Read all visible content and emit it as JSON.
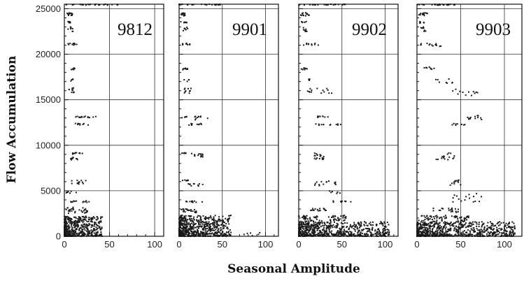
{
  "chart_data": {
    "type": "scatter",
    "title": "",
    "xlabel": "Seasonal Amplitude",
    "ylabel": "Flow Accumulation",
    "grid": true,
    "shared_y_ticks": [
      0,
      5000,
      10000,
      15000,
      20000,
      25000
    ],
    "panels": [
      {
        "label": "9812",
        "xlim": [
          0,
          110
        ],
        "ylim": [
          0,
          25500
        ],
        "x_ticks": [
          0,
          50,
          100
        ],
        "clusters": [
          {
            "x": [
              0,
              65
            ],
            "y": [
              25400,
              25500
            ],
            "n": 24
          },
          {
            "x": [
              3,
              9
            ],
            "y": [
              24200,
              24600
            ],
            "n": 14
          },
          {
            "x": [
              3,
              9
            ],
            "y": [
              23400,
              23600
            ],
            "n": 6
          },
          {
            "x": [
              4,
              10
            ],
            "y": [
              22500,
              23000
            ],
            "n": 8
          },
          {
            "x": [
              4,
              14
            ],
            "y": [
              21000,
              21200
            ],
            "n": 10
          },
          {
            "x": [
              6,
              12
            ],
            "y": [
              18300,
              18500
            ],
            "n": 8
          },
          {
            "x": [
              6,
              10
            ],
            "y": [
              17000,
              17300
            ],
            "n": 4
          },
          {
            "x": [
              5,
              11
            ],
            "y": [
              15700,
              16300
            ],
            "n": 10
          },
          {
            "x": [
              11,
              36
            ],
            "y": [
              13000,
              13200
            ],
            "n": 14
          },
          {
            "x": [
              11,
              28
            ],
            "y": [
              12200,
              12400
            ],
            "n": 10
          },
          {
            "x": [
              8,
              20
            ],
            "y": [
              9000,
              9200
            ],
            "n": 10
          },
          {
            "x": [
              6,
              15
            ],
            "y": [
              8400,
              8700
            ],
            "n": 10
          },
          {
            "x": [
              7,
              24
            ],
            "y": [
              5700,
              6200
            ],
            "n": 14
          },
          {
            "x": [
              2,
              14
            ],
            "y": [
              4700,
              5000
            ],
            "n": 8
          },
          {
            "x": [
              7,
              28
            ],
            "y": [
              3700,
              3900
            ],
            "n": 12
          },
          {
            "x": [
              2,
              26
            ],
            "y": [
              2500,
              3200
            ],
            "n": 30
          },
          {
            "x": [
              0,
              42
            ],
            "y": [
              0,
              2200
            ],
            "n": 520
          }
        ]
      },
      {
        "label": "9901",
        "xlim": [
          0,
          115
        ],
        "ylim": [
          0,
          25500
        ],
        "x_ticks": [
          0,
          50,
          100
        ],
        "clusters": [
          {
            "x": [
              0,
              48
            ],
            "y": [
              25400,
              25500
            ],
            "n": 26
          },
          {
            "x": [
              2,
              9
            ],
            "y": [
              24200,
              24600
            ],
            "n": 14
          },
          {
            "x": [
              2,
              9
            ],
            "y": [
              23400,
              23600
            ],
            "n": 6
          },
          {
            "x": [
              4,
              10
            ],
            "y": [
              22500,
              23000
            ],
            "n": 8
          },
          {
            "x": [
              3,
              14
            ],
            "y": [
              21000,
              21200
            ],
            "n": 10
          },
          {
            "x": [
              3,
              10
            ],
            "y": [
              18300,
              18500
            ],
            "n": 8
          },
          {
            "x": [
              5,
              12
            ],
            "y": [
              17000,
              17300
            ],
            "n": 4
          },
          {
            "x": [
              5,
              14
            ],
            "y": [
              15700,
              16300
            ],
            "n": 10
          },
          {
            "x": [
              2,
              10
            ],
            "y": [
              13000,
              13200
            ],
            "n": 5
          },
          {
            "x": [
              18,
              34
            ],
            "y": [
              12800,
              13200
            ],
            "n": 10
          },
          {
            "x": [
              10,
              26
            ],
            "y": [
              12200,
              12400
            ],
            "n": 10
          },
          {
            "x": [
              2,
              10
            ],
            "y": [
              9000,
              9200
            ],
            "n": 5
          },
          {
            "x": [
              12,
              28
            ],
            "y": [
              8600,
              9200
            ],
            "n": 14
          },
          {
            "x": [
              4,
              12
            ],
            "y": [
              6000,
              6200
            ],
            "n": 6
          },
          {
            "x": [
              9,
              28
            ],
            "y": [
              5500,
              5800
            ],
            "n": 10
          },
          {
            "x": [
              8,
              27
            ],
            "y": [
              3700,
              3900
            ],
            "n": 12
          },
          {
            "x": [
              2,
              22
            ],
            "y": [
              2600,
              3000
            ],
            "n": 22
          },
          {
            "x": [
              0,
              60
            ],
            "y": [
              0,
              2300
            ],
            "n": 620
          },
          {
            "x": [
              75,
              97
            ],
            "y": [
              0,
              600
            ],
            "n": 6
          }
        ]
      },
      {
        "label": "9902",
        "xlim": [
          0,
          115
        ],
        "ylim": [
          0,
          25500
        ],
        "x_ticks": [
          0,
          50,
          100
        ],
        "clusters": [
          {
            "x": [
              0,
              55
            ],
            "y": [
              25400,
              25500
            ],
            "n": 26
          },
          {
            "x": [
              2,
              12
            ],
            "y": [
              24200,
              24600
            ],
            "n": 14
          },
          {
            "x": [
              2,
              10
            ],
            "y": [
              23400,
              23600
            ],
            "n": 6
          },
          {
            "x": [
              4,
              10
            ],
            "y": [
              22500,
              23000
            ],
            "n": 8
          },
          {
            "x": [
              3,
              30
            ],
            "y": [
              21000,
              21200
            ],
            "n": 10
          },
          {
            "x": [
              3,
              10
            ],
            "y": [
              18300,
              18500
            ],
            "n": 8
          },
          {
            "x": [
              8,
              14
            ],
            "y": [
              17000,
              17300
            ],
            "n": 4
          },
          {
            "x": [
              10,
              40
            ],
            "y": [
              15700,
              16300
            ],
            "n": 14
          },
          {
            "x": [
              16,
              34
            ],
            "y": [
              13000,
              13200
            ],
            "n": 10
          },
          {
            "x": [
              18,
              50
            ],
            "y": [
              12200,
              12400
            ],
            "n": 12
          },
          {
            "x": [
              18,
              30
            ],
            "y": [
              8400,
              9200
            ],
            "n": 18
          },
          {
            "x": [
              18,
              45
            ],
            "y": [
              5500,
              6200
            ],
            "n": 14
          },
          {
            "x": [
              35,
              52
            ],
            "y": [
              4700,
              5000
            ],
            "n": 6
          },
          {
            "x": [
              40,
              65
            ],
            "y": [
              3700,
              3900
            ],
            "n": 10
          },
          {
            "x": [
              12,
              32
            ],
            "y": [
              2800,
              3100
            ],
            "n": 16
          },
          {
            "x": [
              0,
              105
            ],
            "y": [
              0,
              1600
            ],
            "n": 660
          },
          {
            "x": [
              0,
              55
            ],
            "y": [
              1600,
              2300
            ],
            "n": 70
          }
        ]
      },
      {
        "label": "9903",
        "xlim": [
          0,
          120
        ],
        "ylim": [
          0,
          25500
        ],
        "x_ticks": [
          0,
          50,
          100
        ],
        "clusters": [
          {
            "x": [
              0,
              45
            ],
            "y": [
              25400,
              25500
            ],
            "n": 26
          },
          {
            "x": [
              2,
              12
            ],
            "y": [
              24200,
              24600
            ],
            "n": 14
          },
          {
            "x": [
              2,
              10
            ],
            "y": [
              23400,
              23600
            ],
            "n": 6
          },
          {
            "x": [
              4,
              10
            ],
            "y": [
              22500,
              23000
            ],
            "n": 8
          },
          {
            "x": [
              3,
              22
            ],
            "y": [
              21000,
              21200
            ],
            "n": 10
          },
          {
            "x": [
              18,
              28
            ],
            "y": [
              20800,
              21000
            ],
            "n": 4
          },
          {
            "x": [
              8,
              20
            ],
            "y": [
              18300,
              18600
            ],
            "n": 8
          },
          {
            "x": [
              20,
              44
            ],
            "y": [
              16800,
              17300
            ],
            "n": 8
          },
          {
            "x": [
              35,
              80
            ],
            "y": [
              15400,
              16300
            ],
            "n": 12
          },
          {
            "x": [
              55,
              75
            ],
            "y": [
              12800,
              13400
            ],
            "n": 12
          },
          {
            "x": [
              40,
              55
            ],
            "y": [
              12200,
              12400
            ],
            "n": 8
          },
          {
            "x": [
              22,
              45
            ],
            "y": [
              8400,
              9200
            ],
            "n": 16
          },
          {
            "x": [
              35,
              50
            ],
            "y": [
              5500,
              6200
            ],
            "n": 12
          },
          {
            "x": [
              40,
              75
            ],
            "y": [
              3700,
              4800
            ],
            "n": 16
          },
          {
            "x": [
              10,
              48
            ],
            "y": [
              2600,
              3100
            ],
            "n": 20
          },
          {
            "x": [
              0,
              112
            ],
            "y": [
              0,
              1600
            ],
            "n": 700
          },
          {
            "x": [
              0,
              60
            ],
            "y": [
              1600,
              2300
            ],
            "n": 70
          }
        ]
      }
    ]
  }
}
